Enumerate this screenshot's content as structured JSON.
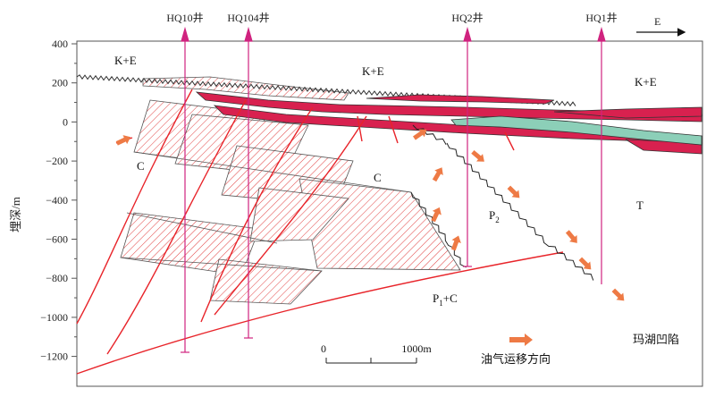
{
  "diagram": {
    "y_axis": {
      "title": "埋深/m",
      "ticks": [
        "400",
        "200",
        "0",
        "−200",
        "−400",
        "−600",
        "−800",
        "−1000",
        "−1200"
      ]
    },
    "wells": [
      "HQ10井",
      "HQ104井",
      "HQ2井",
      "HQ1井"
    ],
    "direction": "E",
    "units": {
      "ke_left": "K+E",
      "ke_mid": "K+E",
      "ke_right": "K+E",
      "c_left": "C",
      "c_mid": "C",
      "p2": "P",
      "p2_sub": "2",
      "t": "T",
      "p1c": "P",
      "p1c_sub": "1",
      "p1c_suffix": "+C"
    },
    "scale_bar": {
      "start": "0",
      "end": "1000m"
    },
    "legend": {
      "label": "油气运移方向"
    },
    "region": "玛湖凹陷",
    "colors": {
      "fault": "#e8242a",
      "oil": "#d8214f",
      "gas": "#8ccfb8",
      "well": "#d0237f",
      "arrow": "#ee7a45",
      "hatch": "#e14040"
    }
  }
}
